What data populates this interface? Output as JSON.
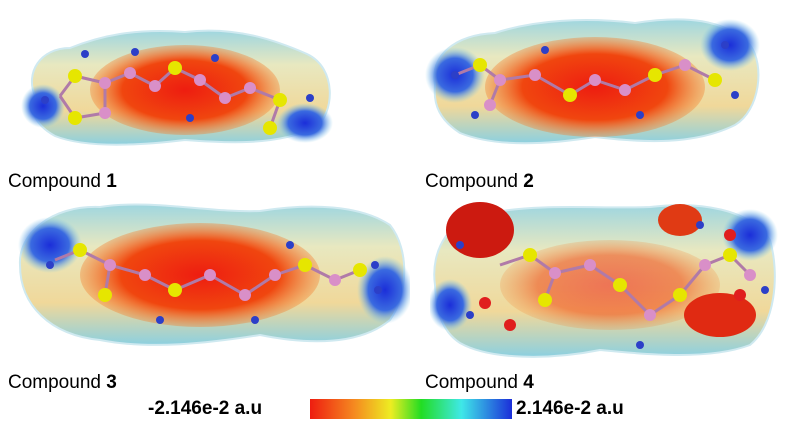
{
  "compounds": [
    {
      "prefix": "Compound ",
      "number": "1"
    },
    {
      "prefix": "Compound ",
      "number": "2"
    },
    {
      "prefix": "Compound ",
      "number": "3"
    },
    {
      "prefix": "Compound ",
      "number": "4"
    }
  ],
  "scale": {
    "min_label": "-2.146e-2 a.u",
    "max_label": "2.146e-2 a.u"
  },
  "colors": {
    "negative": "#ee1d10",
    "mid_orange": "#f58a20",
    "mid_yellow": "#eded22",
    "mid_green": "#22dd22",
    "mid_cyan": "#3fe8e8",
    "positive": "#1b2ed9",
    "carbon_atom": "#d98fc8",
    "sulfur_atom": "#e6e600",
    "hydrogen_atom": "#2c3fc8",
    "oxygen_atom": "#e01e1e"
  }
}
